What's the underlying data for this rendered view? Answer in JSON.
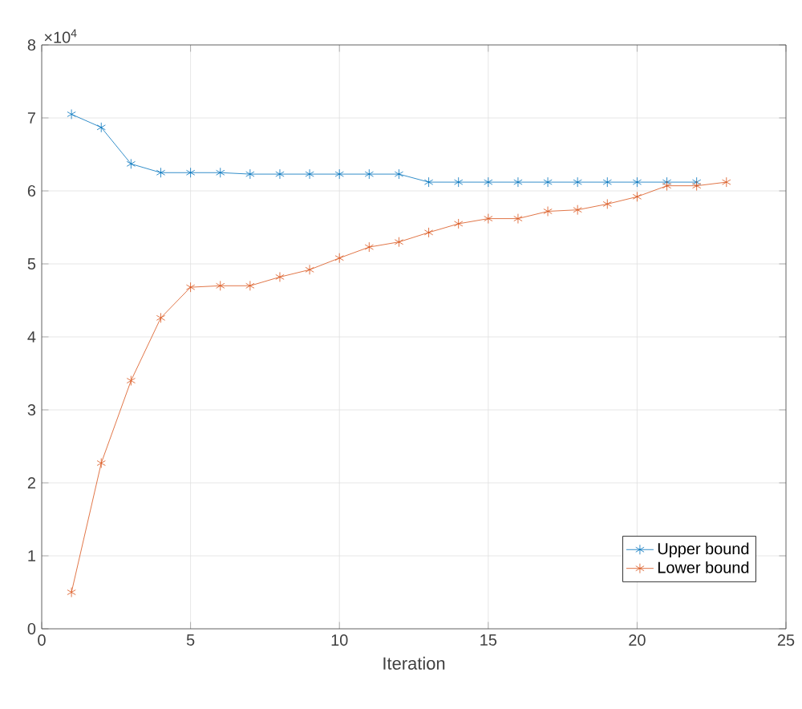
{
  "chart_data": {
    "type": "line",
    "xlabel": "Iteration",
    "annotations": [
      "×10$^{4}$"
    ],
    "xlim": [
      0,
      25
    ],
    "xticks": [
      0,
      5,
      10,
      15,
      20,
      25
    ],
    "ylim": [
      0,
      8
    ],
    "yticks": [
      0,
      1,
      2,
      3,
      4,
      5,
      6,
      7,
      8
    ],
    "grid": true,
    "legend": "bottom right",
    "marker": "cross",
    "line_style": "solid",
    "series": [
      {
        "name": "Upper bound",
        "color": "#0072bd",
        "x": [
          1,
          2,
          3,
          4,
          5,
          6,
          7,
          8,
          9,
          10,
          11,
          12,
          13,
          14,
          15,
          16,
          17,
          18,
          19,
          20,
          21,
          22
        ],
        "values": [
          7.05,
          6.87,
          6.37,
          6.25,
          6.25,
          6.25,
          6.23,
          6.23,
          6.23,
          6.23,
          6.23,
          6.23,
          6.12,
          6.12,
          6.12,
          6.12,
          6.12,
          6.12,
          6.12,
          6.12,
          6.12,
          6.12
        ]
      },
      {
        "name": "Lower bound",
        "color": "#d95319",
        "x": [
          1,
          2,
          3,
          4,
          5,
          6,
          7,
          8,
          9,
          10,
          11,
          12,
          13,
          14,
          15,
          16,
          17,
          18,
          19,
          20,
          21,
          22,
          23
        ],
        "values": [
          0.5,
          2.27,
          3.4,
          4.26,
          4.68,
          4.7,
          4.7,
          4.82,
          4.92,
          5.08,
          5.23,
          5.3,
          5.43,
          5.55,
          5.62,
          5.62,
          5.72,
          5.74,
          5.82,
          5.92,
          6.07,
          6.07,
          6.12
        ]
      }
    ]
  }
}
